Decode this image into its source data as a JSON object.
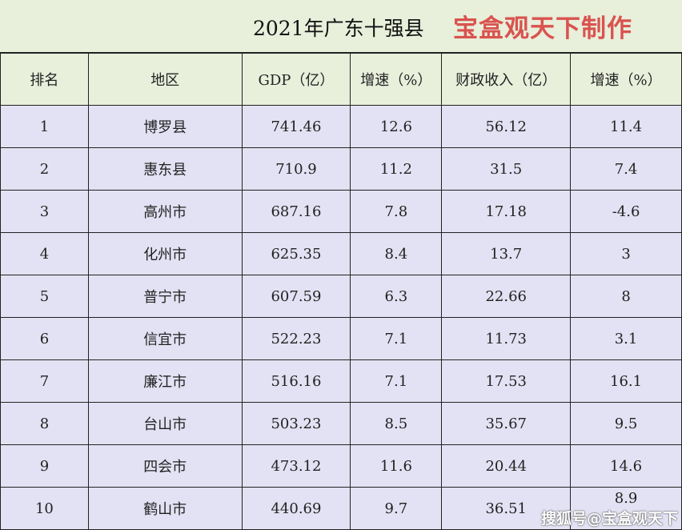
{
  "title": "2021年广东十强县",
  "maker": "宝盒观天下制作",
  "headers": [
    "排名",
    "地区",
    "GDP（亿）",
    "增速（%）",
    "财政收入（亿）",
    "增速（%）"
  ],
  "rows": [
    [
      "1",
      "博罗县",
      "741.46",
      "12.6",
      "56.12",
      "11.4"
    ],
    [
      "2",
      "惠东县",
      "710.9",
      "11.2",
      "31.5",
      "7.4"
    ],
    [
      "3",
      "高州市",
      "687.16",
      "7.8",
      "17.18",
      "-4.6"
    ],
    [
      "4",
      "化州市",
      "625.35",
      "8.4",
      "13.7",
      "3"
    ],
    [
      "5",
      "普宁市",
      "607.59",
      "6.3",
      "22.66",
      "8"
    ],
    [
      "6",
      "信宜市",
      "522.23",
      "7.1",
      "11.73",
      "3.1"
    ],
    [
      "7",
      "廉江市",
      "516.16",
      "7.1",
      "17.53",
      "16.1"
    ],
    [
      "8",
      "台山市",
      "503.23",
      "8.5",
      "35.67",
      "9.5"
    ],
    [
      "9",
      "四会市",
      "473.12",
      "11.6",
      "20.44",
      "14.6"
    ],
    [
      "10",
      "鹤山市",
      "440.69",
      "9.7",
      "36.51",
      "8.9"
    ]
  ],
  "watermark": "搜狐号@宝盒观天下"
}
